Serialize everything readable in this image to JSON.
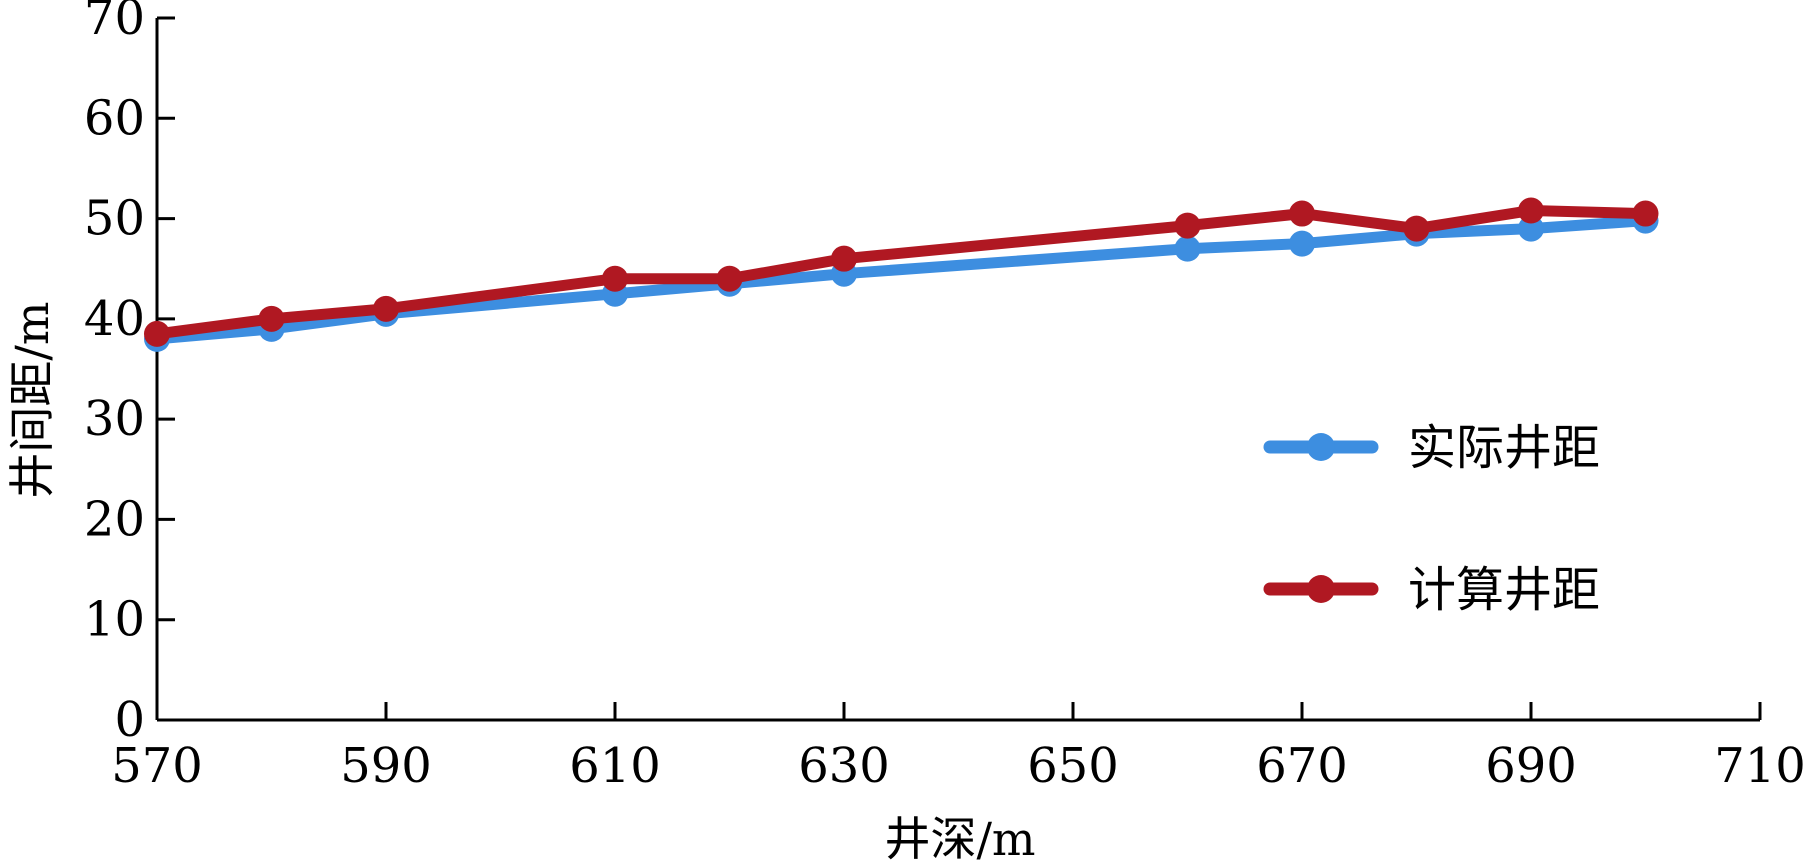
{
  "chart_data": {
    "type": "line",
    "title": "",
    "xlabel": "井深/m",
    "ylabel": "井间距/m",
    "xlim": [
      570,
      710
    ],
    "ylim": [
      0,
      70
    ],
    "xticks": [
      570,
      590,
      610,
      630,
      650,
      670,
      690,
      710
    ],
    "yticks": [
      0,
      10,
      20,
      30,
      40,
      50,
      60,
      70
    ],
    "x": [
      570,
      580,
      590,
      610,
      620,
      630,
      660,
      670,
      680,
      690,
      700
    ],
    "series": [
      {
        "name": "实际井距",
        "color": "#3d8ee0",
        "values": [
          38.0,
          39.0,
          40.5,
          42.5,
          43.5,
          44.5,
          47.0,
          47.5,
          48.5,
          49.0,
          49.8
        ]
      },
      {
        "name": "计算井距",
        "color": "#b01822",
        "values": [
          38.5,
          40.0,
          41.0,
          44.0,
          44.0,
          46.0,
          49.3,
          50.5,
          49.0,
          50.8,
          50.5
        ]
      }
    ],
    "legend": "right",
    "grid": false
  }
}
